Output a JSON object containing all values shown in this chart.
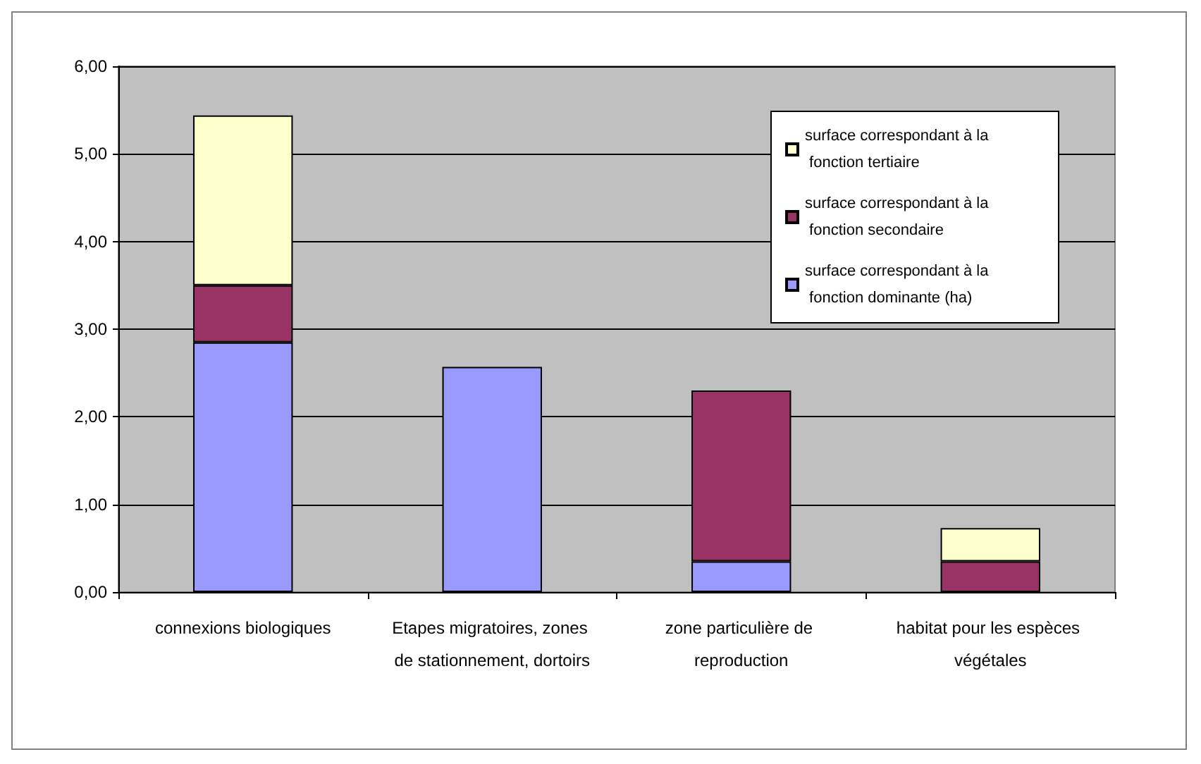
{
  "chart_data": {
    "type": "bar",
    "stacked": true,
    "categories": [
      "connexions biologiques",
      "Etapes migratoires, zones de stationnement, dortoirs",
      "zone particulière de reproduction",
      "habitat pour les espèces végétales"
    ],
    "series": [
      {
        "name": "surface correspondant à la fonction dominante (ha)",
        "color": "#9999ff",
        "values": [
          2.85,
          2.57,
          0.35,
          null
        ]
      },
      {
        "name": "surface correspondant à la fonction secondaire",
        "color": "#993366",
        "values": [
          0.65,
          null,
          1.95,
          0.35
        ]
      },
      {
        "name": "surface correspondant à la fonction tertiaire",
        "color": "#ffffcc",
        "values": [
          1.94,
          null,
          null,
          0.38
        ]
      }
    ],
    "ylim": [
      0,
      6
    ],
    "yticks": [
      {
        "value": 0,
        "label": "0,00"
      },
      {
        "value": 1,
        "label": "1,00"
      },
      {
        "value": 2,
        "label": "2,00"
      },
      {
        "value": 3,
        "label": "3,00"
      },
      {
        "value": 4,
        "label": "4,00"
      },
      {
        "value": 5,
        "label": "5,00"
      },
      {
        "value": 6,
        "label": "6,00"
      }
    ],
    "grid": "y",
    "legend": "top right"
  }
}
